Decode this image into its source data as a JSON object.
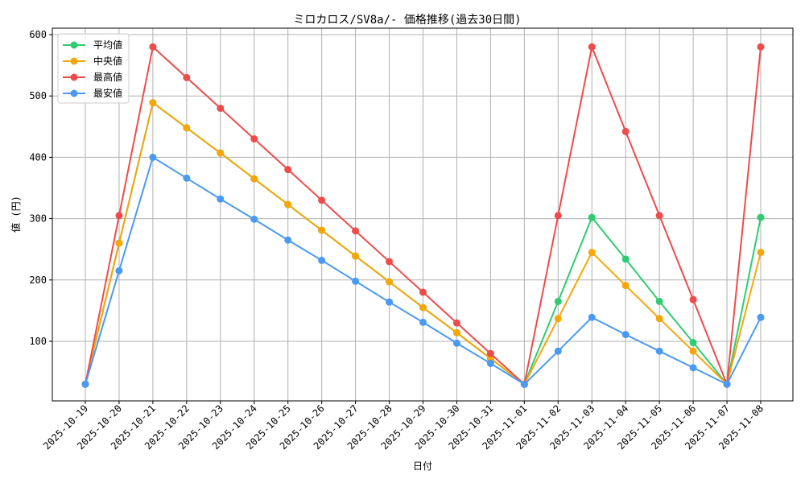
{
  "chart_data": {
    "type": "line",
    "title": "ミロカロス/SV8a/- 価格推移(過去30日間)",
    "xlabel": "日付",
    "ylabel": "値 (円)",
    "x": [
      "2025-10-19",
      "2025-10-20",
      "2025-10-21",
      "2025-10-22",
      "2025-10-23",
      "2025-10-24",
      "2025-10-25",
      "2025-10-26",
      "2025-10-27",
      "2025-10-28",
      "2025-10-29",
      "2025-10-30",
      "2025-10-31",
      "2025-11-01",
      "2025-11-02",
      "2025-11-03",
      "2025-11-04",
      "2025-11-05",
      "2025-11-06",
      "2025-11-07",
      "2025-11-08"
    ],
    "ylim": [
      0,
      600
    ],
    "yticks": [
      100,
      200,
      300,
      400,
      500,
      600
    ],
    "grid": true,
    "legend_position": "top-left",
    "series": [
      {
        "name": "平均値",
        "color": "#2ecc71",
        "values": [
          30,
          260,
          489,
          448,
          407,
          365,
          323,
          281,
          239,
          197,
          155,
          114,
          72,
          30,
          165,
          302,
          234,
          165,
          98,
          30,
          302
        ]
      },
      {
        "name": "中央値",
        "color": "#f5a70a",
        "values": [
          30,
          260,
          489,
          448,
          407,
          365,
          323,
          281,
          239,
          197,
          155,
          114,
          72,
          30,
          137,
          245,
          191,
          137,
          84,
          30,
          245
        ]
      },
      {
        "name": "最高値",
        "color": "#ef4b4b",
        "values": [
          30,
          305,
          580,
          530,
          480,
          430,
          380,
          330,
          280,
          230,
          180,
          130,
          80,
          30,
          305,
          580,
          442,
          305,
          168,
          30,
          580
        ]
      },
      {
        "name": "最安値",
        "color": "#4a9af3",
        "values": [
          30,
          215,
          400,
          366,
          332,
          299,
          265,
          232,
          198,
          164,
          131,
          97,
          64,
          30,
          84,
          139,
          111,
          84,
          57,
          30,
          139
        ]
      }
    ]
  }
}
